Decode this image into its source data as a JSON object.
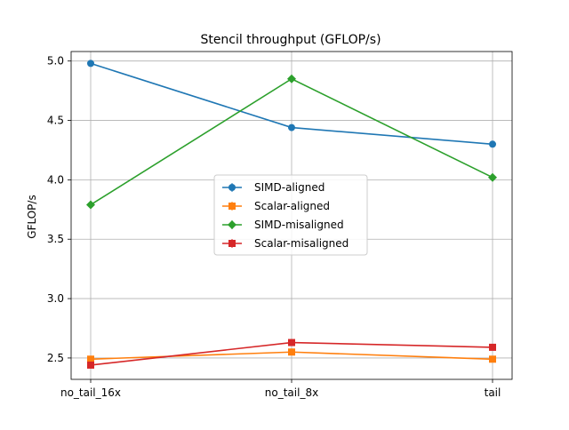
{
  "chart_data": {
    "type": "line",
    "title": "Stencil throughput (GFLOP/s)",
    "xlabel": "",
    "ylabel": "GFLOP/s",
    "categories": [
      "no_tail_16x",
      "no_tail_8x",
      "tail"
    ],
    "ylim": [
      2.32,
      5.08
    ],
    "yticks": [
      2.5,
      3.0,
      3.5,
      4.0,
      4.5,
      5.0
    ],
    "ytick_labels": [
      "2.5",
      "3.0",
      "3.5",
      "4.0",
      "4.5",
      "5.0"
    ],
    "grid": true,
    "legend_position": "center",
    "series": [
      {
        "name": "SIMD-aligned",
        "color": "#1f77b4",
        "marker": "circle",
        "values": [
          4.98,
          4.44,
          4.3
        ]
      },
      {
        "name": "Scalar-aligned",
        "color": "#ff7f0e",
        "marker": "square",
        "values": [
          2.49,
          2.55,
          2.49
        ]
      },
      {
        "name": "SIMD-misaligned",
        "color": "#2ca02c",
        "marker": "diamond",
        "values": [
          3.79,
          4.85,
          4.02
        ]
      },
      {
        "name": "Scalar-misaligned",
        "color": "#d62728",
        "marker": "square",
        "values": [
          2.44,
          2.63,
          2.59
        ]
      }
    ]
  }
}
